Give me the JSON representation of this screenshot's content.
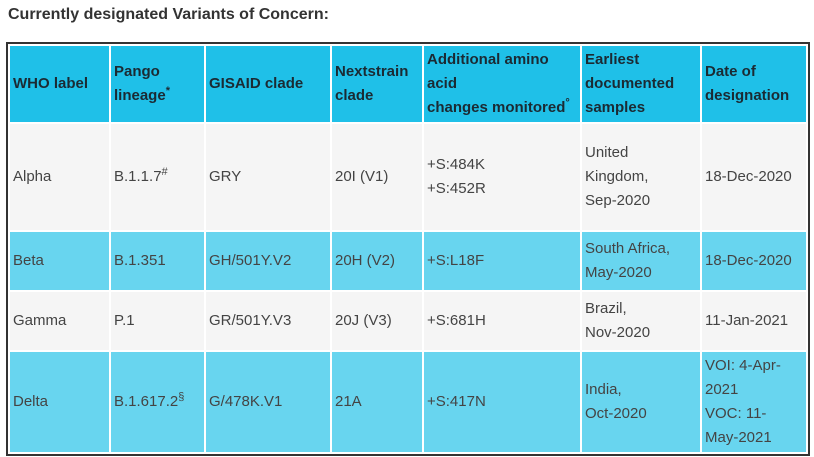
{
  "title": "Currently designated Variants of Concern:",
  "table": {
    "header": [
      [
        "WHO label"
      ],
      [
        "Pango",
        {
          "text": "lineage",
          "sup": "*"
        }
      ],
      [
        "GISAID clade"
      ],
      [
        "Nextstrain",
        "clade"
      ],
      [
        "Additional amino",
        "acid",
        {
          "text": "changes monitored",
          "sup": "°"
        }
      ],
      [
        "Earliest",
        "documented",
        "samples"
      ],
      [
        "Date of",
        "designation"
      ]
    ],
    "rows": [
      [
        [
          "Alpha"
        ],
        [
          {
            "text": "B.1.1.7",
            "sup": "#"
          }
        ],
        [
          "GRY"
        ],
        [
          "20I (V1)"
        ],
        [
          "+S:484K",
          "+S:452R"
        ],
        [
          "United",
          "Kingdom,",
          "Sep-2020"
        ],
        [
          "18-Dec-2020"
        ]
      ],
      [
        [
          "Beta"
        ],
        [
          "B.1.351"
        ],
        [
          "GH/501Y.V2"
        ],
        [
          "20H (V2)"
        ],
        [
          "+S:L18F"
        ],
        [
          "South Africa,",
          "May-2020"
        ],
        [
          "18-Dec-2020"
        ]
      ],
      [
        [
          "Gamma"
        ],
        [
          "P.1"
        ],
        [
          "GR/501Y.V3"
        ],
        [
          "20J (V3)"
        ],
        [
          "+S:681H"
        ],
        [
          "Brazil,",
          "Nov-2020"
        ],
        [
          "11-Jan-2021"
        ]
      ],
      [
        [
          "Delta"
        ],
        [
          {
            "text": "B.1.617.2",
            "sup": "§"
          }
        ],
        [
          "G/478K.V1"
        ],
        [
          "21A"
        ],
        [
          "+S:417N"
        ],
        [
          "India,",
          "Oct-2020"
        ],
        [
          "VOI: 4-Apr-",
          "2021",
          "VOC: 11-",
          "May-2021"
        ]
      ]
    ]
  }
}
